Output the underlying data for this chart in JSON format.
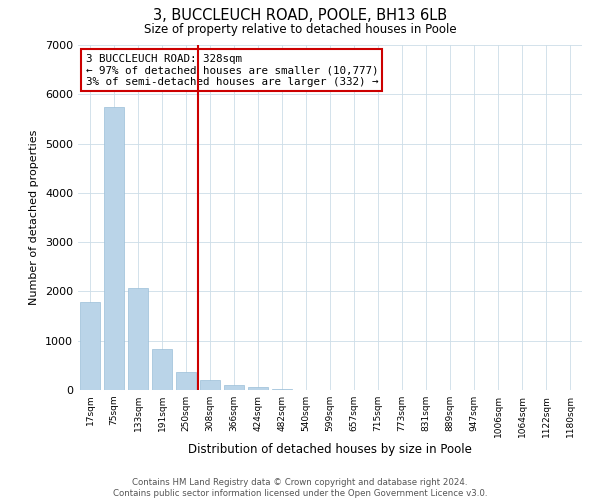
{
  "title": "3, BUCCLEUCH ROAD, POOLE, BH13 6LB",
  "subtitle": "Size of property relative to detached houses in Poole",
  "xlabel": "Distribution of detached houses by size in Poole",
  "ylabel": "Number of detached properties",
  "bar_color": "#bad4e8",
  "bar_edge_color": "#9bbfd8",
  "bg_color": "#ffffff",
  "grid_color": "#ccdde8",
  "categories": [
    "17sqm",
    "75sqm",
    "133sqm",
    "191sqm",
    "250sqm",
    "308sqm",
    "366sqm",
    "424sqm",
    "482sqm",
    "540sqm",
    "599sqm",
    "657sqm",
    "715sqm",
    "773sqm",
    "831sqm",
    "889sqm",
    "947sqm",
    "1006sqm",
    "1064sqm",
    "1122sqm",
    "1180sqm"
  ],
  "values": [
    1780,
    5750,
    2060,
    840,
    370,
    200,
    110,
    60,
    30,
    10,
    5,
    0,
    0,
    0,
    0,
    0,
    0,
    0,
    0,
    0,
    0
  ],
  "ylim": [
    0,
    7000
  ],
  "yticks": [
    0,
    1000,
    2000,
    3000,
    4000,
    5000,
    6000,
    7000
  ],
  "vline_x_index": 4.5,
  "vline_color": "#cc0000",
  "annotation_box_color": "#cc0000",
  "annotation_title": "3 BUCCLEUCH ROAD: 328sqm",
  "annotation_line1": "← 97% of detached houses are smaller (10,777)",
  "annotation_line2": "3% of semi-detached houses are larger (332) →",
  "footer_line1": "Contains HM Land Registry data © Crown copyright and database right 2024.",
  "footer_line2": "Contains public sector information licensed under the Open Government Licence v3.0."
}
